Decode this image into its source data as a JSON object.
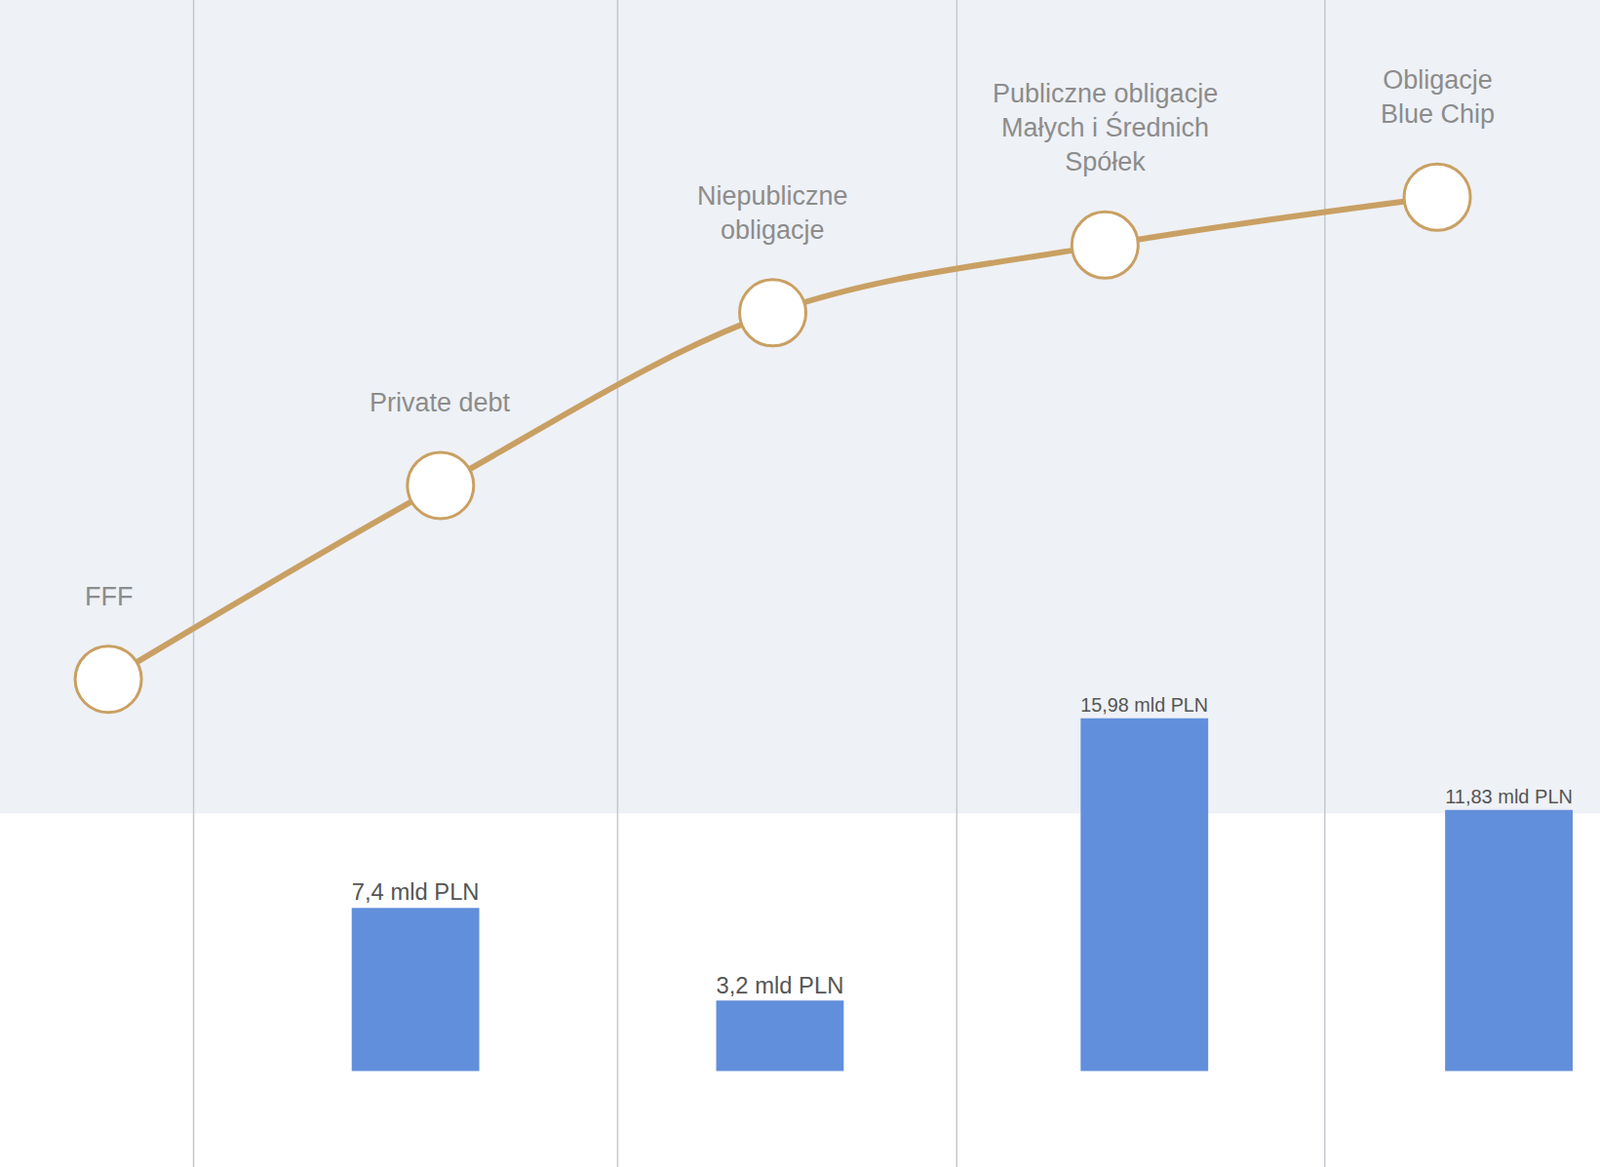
{
  "chart_data": [
    {
      "type": "line",
      "categories": [
        "FFF",
        "Private debt",
        "Niepubliczne\nobligacje",
        "Publiczne obligacje\nMałych i Średnich\nSpółek",
        "Obligacje\nBlue Chip"
      ],
      "values": [
        41.8,
        58.4,
        73.2,
        79.0,
        83.1
      ],
      "ylim": [
        0,
        100
      ],
      "color": "#c9a063",
      "marker": "circle",
      "tick_labels": false
    },
    {
      "type": "bar",
      "categories": [
        null,
        null,
        null,
        null,
        null
      ],
      "values": [
        null,
        7.4,
        3.2,
        15.98,
        11.83
      ],
      "value_labels": [
        null,
        "7,4 mld PLN",
        "3,2 mld PLN",
        "15,98 mld PLN",
        "11,83 mld PLN"
      ],
      "ylim": [
        0,
        48.5
      ],
      "color": "#628fdb",
      "data_labels": true,
      "tick_labels": false
    }
  ]
}
